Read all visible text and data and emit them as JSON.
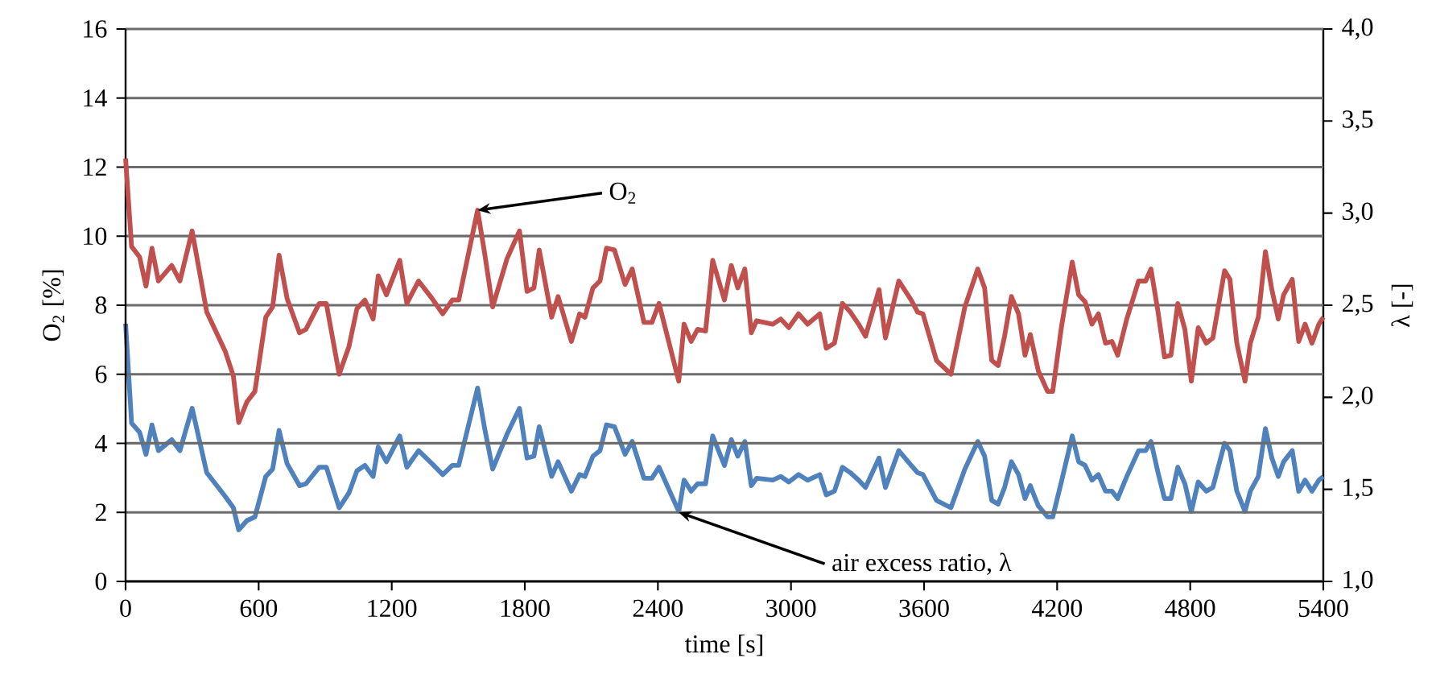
{
  "chart_data": {
    "type": "line",
    "xlabel": "time [s]",
    "ylabel": "O$_{2}$ [%]",
    "y2label": "λ [-]",
    "x": [
      0,
      27,
      63,
      92,
      119,
      148,
      208,
      245,
      300,
      366,
      450,
      486,
      510,
      547,
      583,
      632,
      663,
      692,
      728,
      784,
      813,
      873,
      905,
      963,
      1007,
      1043,
      1079,
      1116,
      1139,
      1176,
      1236,
      1268,
      1321,
      1381,
      1430,
      1473,
      1502,
      1587,
      1619,
      1655,
      1720,
      1776,
      1810,
      1841,
      1865,
      1921,
      1950,
      2010,
      2047,
      2071,
      2107,
      2139,
      2168,
      2204,
      2252,
      2284,
      2337,
      2373,
      2405,
      2494,
      2518,
      2550,
      2579,
      2615,
      2647,
      2700,
      2731,
      2760,
      2792,
      2821,
      2845,
      2918,
      2954,
      2990,
      3034,
      3075,
      3130,
      3159,
      3196,
      3232,
      3268,
      3305,
      3336,
      3397,
      3426,
      3486,
      3542,
      3571,
      3595,
      3656,
      3721,
      3784,
      3842,
      3873,
      3905,
      3934,
      3963,
      3994,
      4026,
      4055,
      4079,
      4115,
      4157,
      4180,
      4219,
      4268,
      4297,
      4326,
      4357,
      4386,
      4418,
      4447,
      4473,
      4514,
      4567,
      4599,
      4623,
      4655,
      4684,
      4713,
      4744,
      4776,
      4805,
      4836,
      4872,
      4902,
      4955,
      4979,
      5010,
      5047,
      5071,
      5107,
      5139,
      5168,
      5197,
      5221,
      5260,
      5289,
      5318,
      5349,
      5380,
      5400
    ],
    "series": [
      {
        "color": "#c0504d",
        "values": [
          12.25,
          9.7,
          9.4,
          8.55,
          9.65,
          8.7,
          9.15,
          8.7,
          10.15,
          7.8,
          6.65,
          5.95,
          4.6,
          5.2,
          5.5,
          7.65,
          7.95,
          9.45,
          8.2,
          7.2,
          7.3,
          8.05,
          8.05,
          6.0,
          6.8,
          7.9,
          8.15,
          7.6,
          8.85,
          8.3,
          9.3,
          8.05,
          8.7,
          8.2,
          7.75,
          8.15,
          8.15,
          10.75,
          9.5,
          7.95,
          9.35,
          10.15,
          8.4,
          8.5,
          9.6,
          7.65,
          8.25,
          6.95,
          7.75,
          7.65,
          8.5,
          8.7,
          9.65,
          9.6,
          8.6,
          9.05,
          7.5,
          7.5,
          8.05,
          5.8,
          7.45,
          6.95,
          7.3,
          7.25,
          9.3,
          8.15,
          9.15,
          8.5,
          9.05,
          7.2,
          7.55,
          7.45,
          7.6,
          7.35,
          7.75,
          7.45,
          7.75,
          6.75,
          6.9,
          8.05,
          7.8,
          7.45,
          7.1,
          8.45,
          7.05,
          8.7,
          8.15,
          7.8,
          7.75,
          6.4,
          6.0,
          7.95,
          9.05,
          8.5,
          6.4,
          6.25,
          7.1,
          8.25,
          7.75,
          6.55,
          7.15,
          6.1,
          5.5,
          5.5,
          7.35,
          9.25,
          8.3,
          8.1,
          7.45,
          7.75,
          6.9,
          6.95,
          6.55,
          7.6,
          8.7,
          8.7,
          9.05,
          7.8,
          6.5,
          6.55,
          8.05,
          7.3,
          5.8,
          7.35,
          6.9,
          7.05,
          9.0,
          8.75,
          6.9,
          5.8,
          6.9,
          7.65,
          9.55,
          8.45,
          7.6,
          8.3,
          8.75,
          6.95,
          7.45,
          6.9,
          7.45,
          7.65
        ]
      },
      {
        "color": "#4f81bd",
        "axis": "y2",
        "values": [
          2.4,
          1.86,
          1.81,
          1.69,
          1.85,
          1.71,
          1.77,
          1.71,
          1.94,
          1.59,
          1.46,
          1.4,
          1.28,
          1.33,
          1.35,
          1.57,
          1.61,
          1.82,
          1.64,
          1.52,
          1.53,
          1.62,
          1.62,
          1.4,
          1.48,
          1.6,
          1.63,
          1.57,
          1.73,
          1.65,
          1.79,
          1.62,
          1.71,
          1.64,
          1.58,
          1.63,
          1.63,
          2.05,
          1.83,
          1.61,
          1.8,
          1.94,
          1.67,
          1.68,
          1.84,
          1.57,
          1.65,
          1.49,
          1.58,
          1.57,
          1.68,
          1.71,
          1.85,
          1.84,
          1.69,
          1.76,
          1.56,
          1.56,
          1.62,
          1.38,
          1.55,
          1.49,
          1.53,
          1.53,
          1.79,
          1.63,
          1.77,
          1.68,
          1.76,
          1.52,
          1.56,
          1.55,
          1.57,
          1.54,
          1.58,
          1.55,
          1.58,
          1.47,
          1.49,
          1.62,
          1.59,
          1.55,
          1.51,
          1.67,
          1.51,
          1.71,
          1.63,
          1.59,
          1.58,
          1.44,
          1.4,
          1.61,
          1.76,
          1.68,
          1.44,
          1.42,
          1.51,
          1.65,
          1.58,
          1.45,
          1.52,
          1.41,
          1.35,
          1.35,
          1.54,
          1.79,
          1.65,
          1.63,
          1.55,
          1.58,
          1.49,
          1.49,
          1.45,
          1.57,
          1.71,
          1.71,
          1.76,
          1.59,
          1.45,
          1.45,
          1.62,
          1.53,
          1.38,
          1.54,
          1.49,
          1.51,
          1.75,
          1.71,
          1.49,
          1.38,
          1.49,
          1.57,
          1.83,
          1.67,
          1.57,
          1.65,
          1.71,
          1.49,
          1.55,
          1.49,
          1.55,
          1.57
        ]
      }
    ],
    "xlim": [
      0,
      5400
    ],
    "xticks": [
      0,
      600,
      1200,
      1800,
      2400,
      3000,
      3600,
      4200,
      4800,
      5400
    ],
    "ylim": [
      0,
      16
    ],
    "yticks": [
      0,
      2,
      4,
      6,
      8,
      10,
      12,
      14,
      16
    ],
    "y2lim": [
      1,
      4
    ],
    "y2ticks": [
      {
        "value": 1,
        "label": "1,0"
      },
      {
        "value": 1.5,
        "label": "1,5"
      },
      {
        "value": 2,
        "label": "2,0"
      },
      {
        "value": 2.5,
        "label": "2,5"
      },
      {
        "value": 3,
        "label": "3,0"
      },
      {
        "value": 3.5,
        "label": "3,5"
      },
      {
        "value": 4,
        "label": "4,0"
      }
    ],
    "grid": "y",
    "marker": "none",
    "line_style": "solid",
    "annotations": [
      {
        "text": "O$_{2}$",
        "x": 1587,
        "y": 10.75
      },
      {
        "text": "air excess ratio, λ",
        "x": 2494,
        "y": 2.0
      }
    ]
  }
}
